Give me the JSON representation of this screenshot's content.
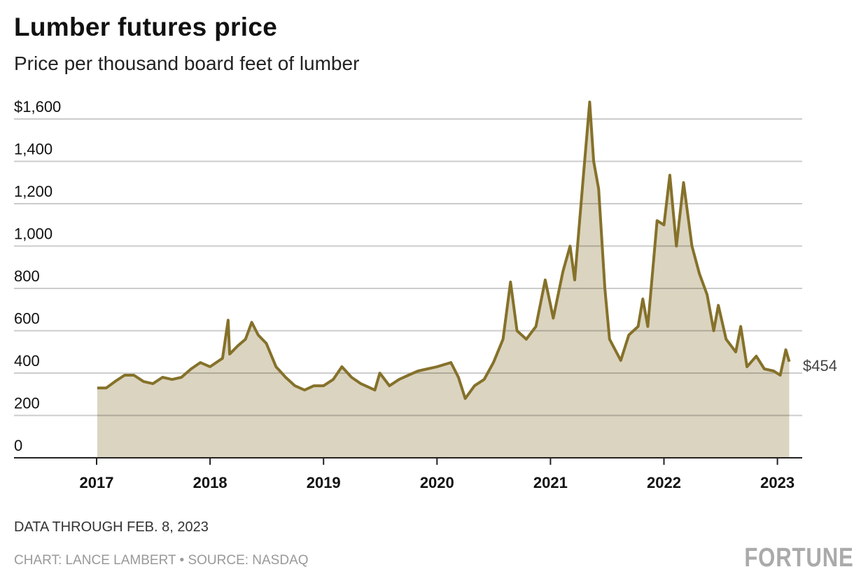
{
  "chart_data": {
    "type": "area",
    "title": "Lumber futures price",
    "subtitle": "Price per thousand board feet of lumber",
    "ylim": [
      0,
      1600
    ],
    "yticks": [
      0,
      200,
      400,
      600,
      800,
      1000,
      1200,
      1400,
      1600
    ],
    "ytick_labels": [
      "0",
      "200",
      "400",
      "600",
      "800",
      "1,000",
      "1,200",
      "1,400",
      "$1,600"
    ],
    "xticks": [
      "2017",
      "2018",
      "2019",
      "2020",
      "2021",
      "2022",
      "2023"
    ],
    "grid": true,
    "line_color": "#85712a",
    "fill_color": "#dbd4c0",
    "end_label": "$454",
    "points": [
      [
        "2017-01-03",
        330
      ],
      [
        "2017-02-01",
        330
      ],
      [
        "2017-03-01",
        360
      ],
      [
        "2017-04-01",
        390
      ],
      [
        "2017-05-01",
        390
      ],
      [
        "2017-06-01",
        360
      ],
      [
        "2017-07-01",
        350
      ],
      [
        "2017-08-01",
        380
      ],
      [
        "2017-09-01",
        370
      ],
      [
        "2017-10-01",
        380
      ],
      [
        "2017-11-01",
        420
      ],
      [
        "2017-12-01",
        450
      ],
      [
        "2018-01-01",
        430
      ],
      [
        "2018-02-10",
        470
      ],
      [
        "2018-02-28",
        650
      ],
      [
        "2018-03-05",
        490
      ],
      [
        "2018-04-01",
        530
      ],
      [
        "2018-04-25",
        560
      ],
      [
        "2018-05-15",
        640
      ],
      [
        "2018-06-05",
        580
      ],
      [
        "2018-07-01",
        540
      ],
      [
        "2018-08-01",
        430
      ],
      [
        "2018-09-01",
        380
      ],
      [
        "2018-10-01",
        340
      ],
      [
        "2018-11-01",
        320
      ],
      [
        "2018-12-01",
        340
      ],
      [
        "2019-01-01",
        340
      ],
      [
        "2019-02-01",
        370
      ],
      [
        "2019-03-01",
        430
      ],
      [
        "2019-04-01",
        380
      ],
      [
        "2019-05-01",
        350
      ],
      [
        "2019-06-15",
        320
      ],
      [
        "2019-07-01",
        400
      ],
      [
        "2019-08-01",
        340
      ],
      [
        "2019-09-01",
        370
      ],
      [
        "2019-10-01",
        390
      ],
      [
        "2019-11-01",
        410
      ],
      [
        "2019-12-01",
        420
      ],
      [
        "2020-01-01",
        430
      ],
      [
        "2020-02-15",
        450
      ],
      [
        "2020-03-10",
        380
      ],
      [
        "2020-04-01",
        280
      ],
      [
        "2020-05-01",
        340
      ],
      [
        "2020-06-01",
        370
      ],
      [
        "2020-07-01",
        450
      ],
      [
        "2020-08-01",
        560
      ],
      [
        "2020-08-25",
        830
      ],
      [
        "2020-09-15",
        600
      ],
      [
        "2020-10-15",
        560
      ],
      [
        "2020-11-15",
        620
      ],
      [
        "2020-12-15",
        840
      ],
      [
        "2021-01-10",
        660
      ],
      [
        "2021-02-10",
        880
      ],
      [
        "2021-03-05",
        1000
      ],
      [
        "2021-03-20",
        840
      ],
      [
        "2021-04-15",
        1300
      ],
      [
        "2021-05-07",
        1680
      ],
      [
        "2021-05-20",
        1400
      ],
      [
        "2021-06-05",
        1270
      ],
      [
        "2021-06-25",
        800
      ],
      [
        "2021-07-10",
        560
      ],
      [
        "2021-08-15",
        460
      ],
      [
        "2021-09-10",
        580
      ],
      [
        "2021-10-10",
        620
      ],
      [
        "2021-10-25",
        750
      ],
      [
        "2021-11-10",
        620
      ],
      [
        "2021-12-10",
        1120
      ],
      [
        "2022-01-01",
        1100
      ],
      [
        "2022-01-20",
        1335
      ],
      [
        "2022-02-10",
        1000
      ],
      [
        "2022-03-05",
        1300
      ],
      [
        "2022-04-01",
        1000
      ],
      [
        "2022-04-25",
        870
      ],
      [
        "2022-05-20",
        770
      ],
      [
        "2022-06-10",
        600
      ],
      [
        "2022-06-25",
        720
      ],
      [
        "2022-07-20",
        560
      ],
      [
        "2022-08-20",
        500
      ],
      [
        "2022-09-05",
        620
      ],
      [
        "2022-09-25",
        430
      ],
      [
        "2022-10-25",
        480
      ],
      [
        "2022-11-20",
        420
      ],
      [
        "2022-12-20",
        410
      ],
      [
        "2023-01-10",
        390
      ],
      [
        "2023-01-28",
        510
      ],
      [
        "2023-02-08",
        454
      ]
    ]
  },
  "footer": {
    "note": "DATA THROUGH FEB. 8, 2023",
    "credit": "CHART: LANCE LAMBERT • SOURCE: NASDAQ",
    "logo": "FORTUNE"
  }
}
